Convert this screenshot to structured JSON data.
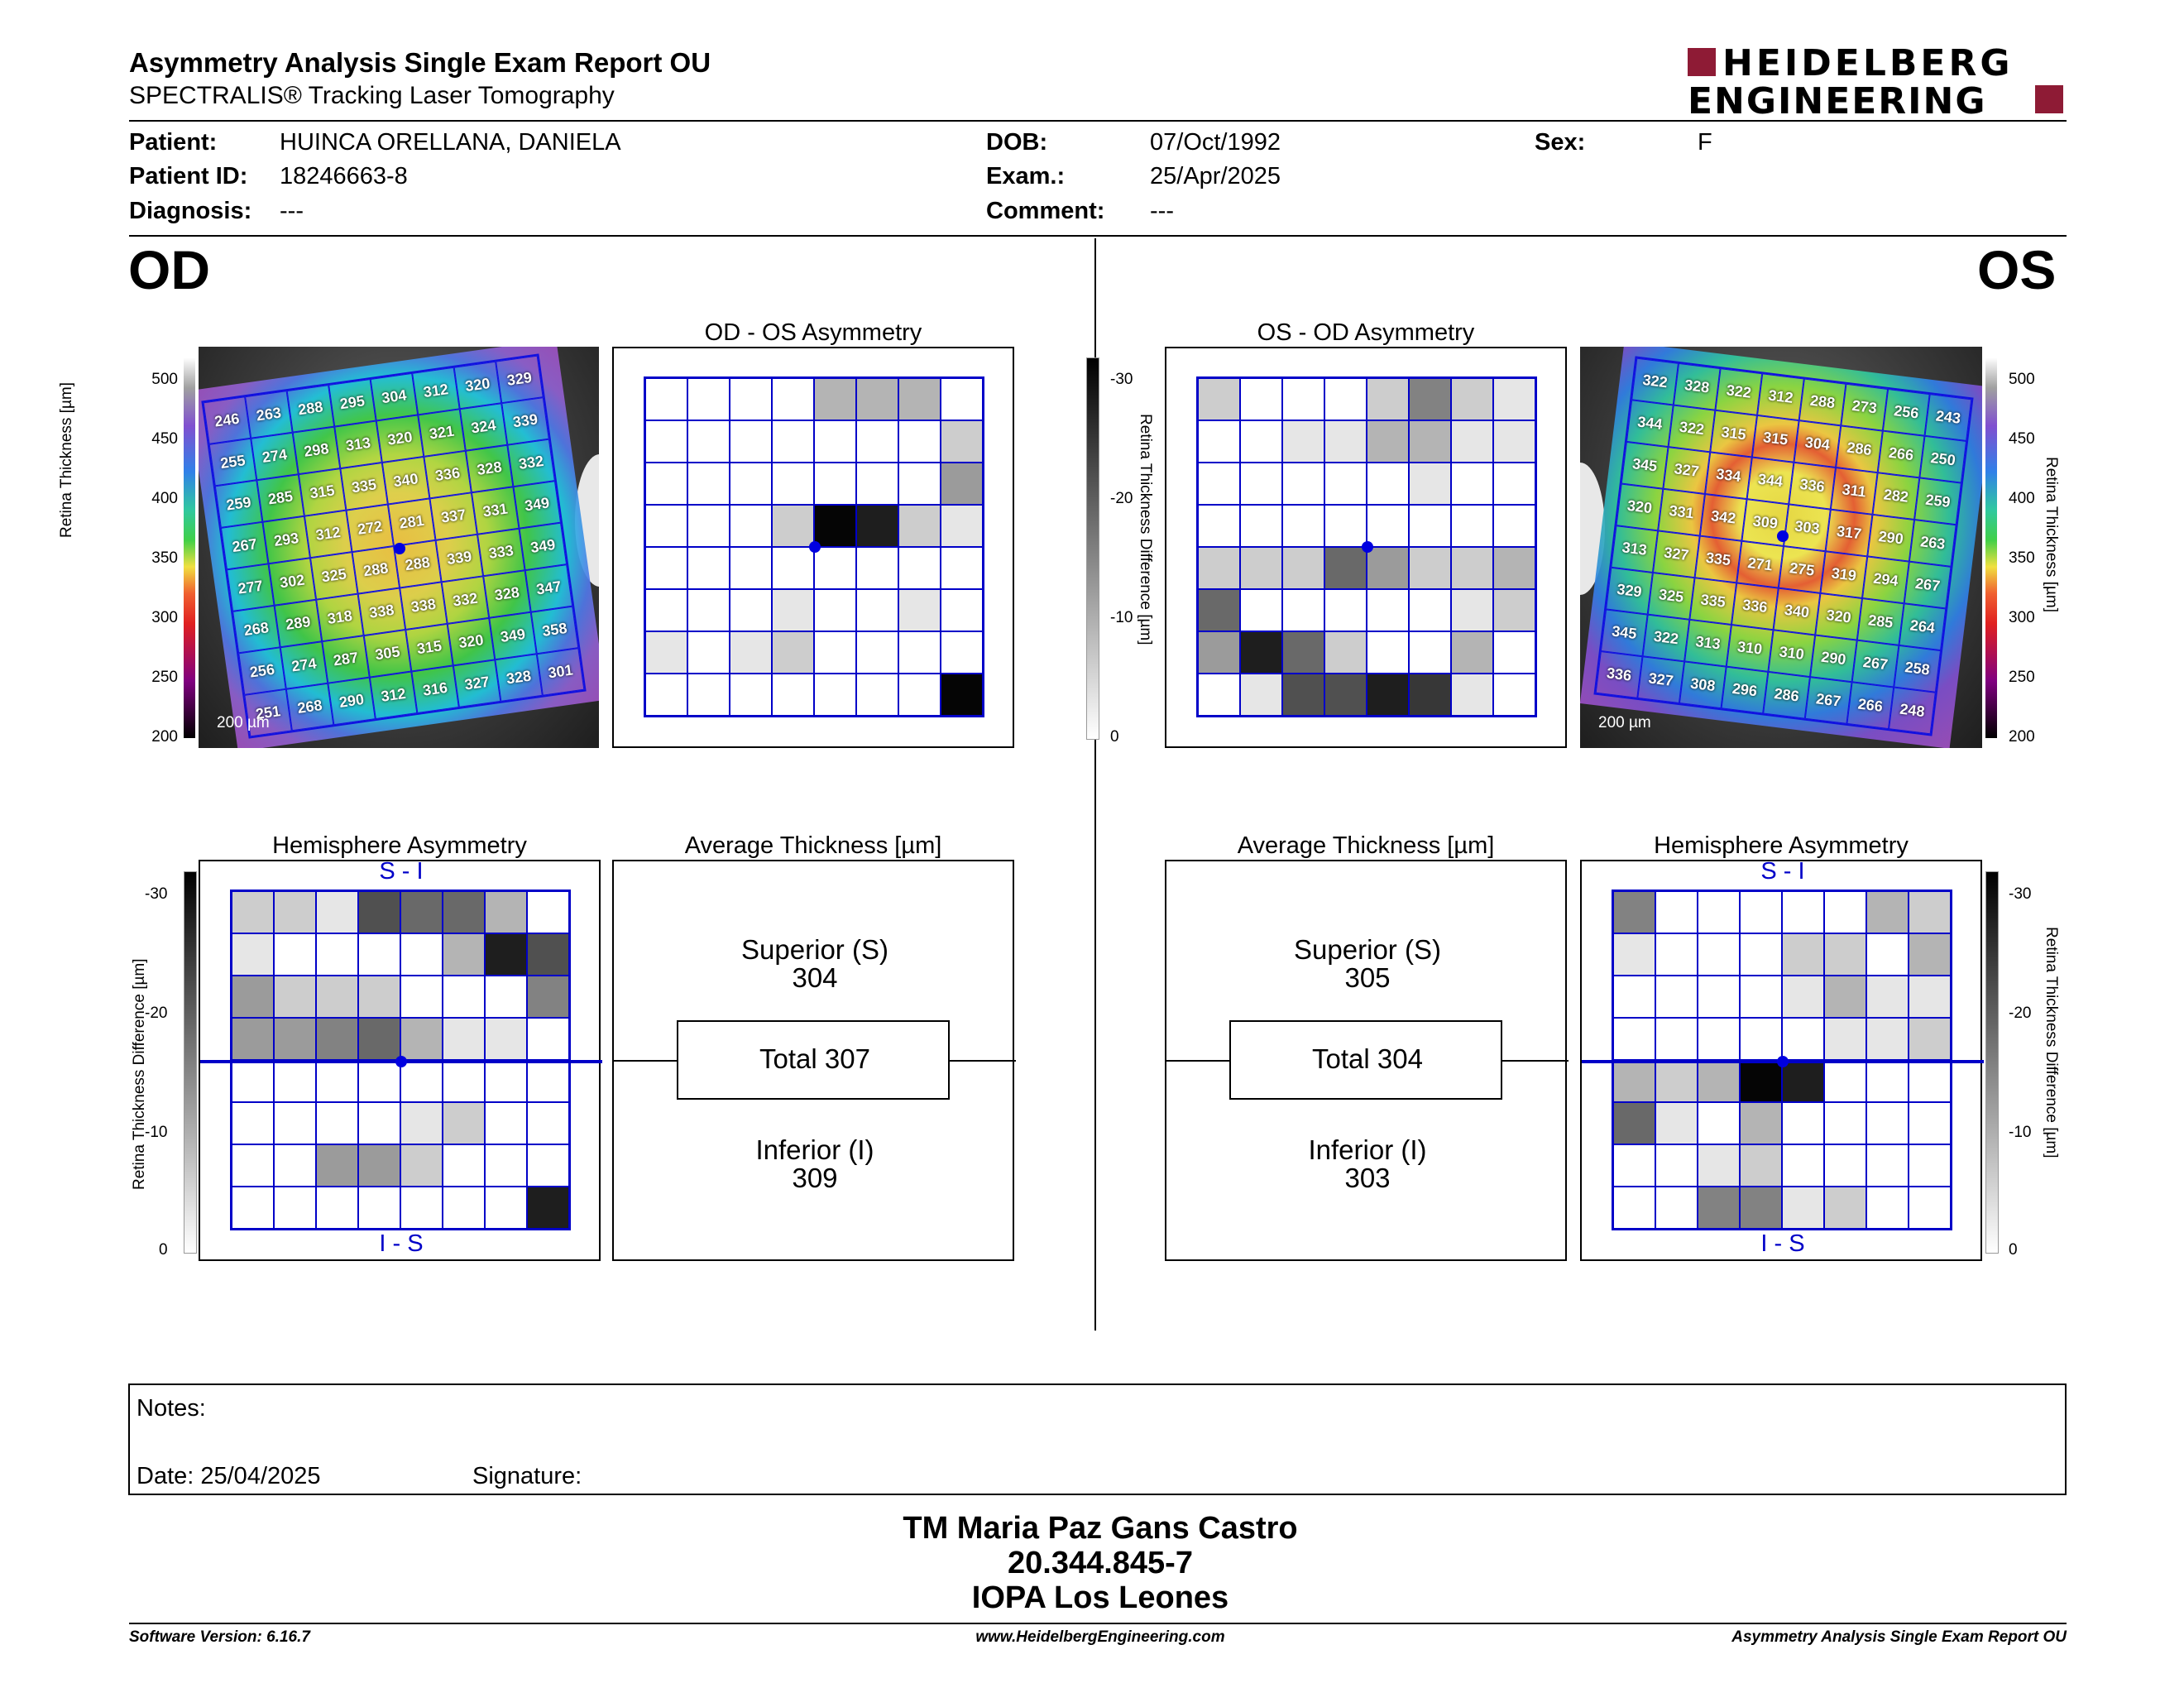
{
  "header": {
    "title": "Asymmetry Analysis Single Exam Report OU",
    "subtitle": "SPECTRALIS® Tracking Laser Tomography",
    "logo_line1": "HEIDELBERG",
    "logo_line2": "ENGINEERING"
  },
  "patient": {
    "patient_label": "Patient:",
    "patient_value": "HUINCA ORELLANA, DANIELA",
    "id_label": "Patient ID:",
    "id_value": "18246663-8",
    "diag_label": "Diagnosis:",
    "diag_value": "---",
    "dob_label": "DOB:",
    "dob_value": "07/Oct/1992",
    "exam_label": "Exam.:",
    "exam_value": "25/Apr/2025",
    "comment_label": "Comment:",
    "comment_value": "---",
    "sex_label": "Sex:",
    "sex_value": "F"
  },
  "od": {
    "eye": "OD",
    "asym_title": "OD - OS Asymmetry",
    "hemi_title": "Hemisphere Asymmetry",
    "avg_title": "Average Thickness [µm]",
    "superior_label": "Superior (S)",
    "superior_value": "304",
    "total": "Total 307",
    "inferior_label": "Inferior (I)",
    "inferior_value": "309",
    "scale_label": "200 µm",
    "thickness": [
      [
        "246",
        "263",
        "288",
        "295",
        "304",
        "312",
        "320",
        "329"
      ],
      [
        "255",
        "274",
        "298",
        "313",
        "320",
        "321",
        "324",
        "339"
      ],
      [
        "259",
        "285",
        "315",
        "335",
        "340",
        "336",
        "328",
        "332"
      ],
      [
        "267",
        "293",
        "312",
        "272",
        "281",
        "337",
        "331",
        "349"
      ],
      [
        "277",
        "302",
        "325",
        "288",
        "288",
        "339",
        "333",
        "349"
      ],
      [
        "268",
        "289",
        "318",
        "338",
        "338",
        "332",
        "328",
        "347"
      ],
      [
        "256",
        "274",
        "287",
        "305",
        "315",
        "320",
        "349",
        "358"
      ],
      [
        "251",
        "268",
        "290",
        "312",
        "316",
        "327",
        "328",
        "301"
      ]
    ],
    "asym_gray": [
      [
        0,
        0,
        0,
        0,
        3,
        3,
        3,
        0
      ],
      [
        0,
        0,
        0,
        0,
        0,
        0,
        0,
        2
      ],
      [
        0,
        0,
        0,
        0,
        0,
        0,
        0,
        4
      ],
      [
        0,
        0,
        0,
        2,
        10,
        9,
        2,
        1
      ],
      [
        0,
        0,
        0,
        0,
        0,
        0,
        0,
        0
      ],
      [
        0,
        0,
        0,
        1,
        0,
        0,
        1,
        0
      ],
      [
        1,
        0,
        1,
        2,
        0,
        0,
        0,
        0
      ],
      [
        0,
        0,
        0,
        0,
        0,
        0,
        0,
        10
      ]
    ],
    "hemi_gray": [
      [
        2,
        2,
        1,
        7,
        6,
        6,
        3,
        0
      ],
      [
        1,
        0,
        0,
        0,
        0,
        3,
        9,
        7
      ],
      [
        4,
        2,
        2,
        2,
        0,
        0,
        0,
        5
      ],
      [
        4,
        4,
        5,
        6,
        3,
        1,
        1,
        0
      ],
      [
        0,
        0,
        0,
        0,
        0,
        0,
        0,
        0
      ],
      [
        0,
        0,
        0,
        0,
        1,
        2,
        0,
        0
      ],
      [
        0,
        0,
        4,
        4,
        2,
        0,
        0,
        0
      ],
      [
        0,
        0,
        0,
        0,
        0,
        0,
        0,
        9
      ]
    ]
  },
  "os": {
    "eye": "OS",
    "asym_title": "OS - OD Asymmetry",
    "hemi_title": "Hemisphere Asymmetry",
    "avg_title": "Average Thickness [µm]",
    "superior_label": "Superior (S)",
    "superior_value": "305",
    "total": "Total 304",
    "inferior_label": "Inferior (I)",
    "inferior_value": "303",
    "scale_label": "200 µm",
    "thickness": [
      [
        "322",
        "328",
        "322",
        "312",
        "288",
        "273",
        "256",
        "243"
      ],
      [
        "344",
        "322",
        "315",
        "315",
        "304",
        "286",
        "266",
        "250"
      ],
      [
        "345",
        "327",
        "334",
        "344",
        "336",
        "311",
        "282",
        "259"
      ],
      [
        "320",
        "331",
        "342",
        "309",
        "303",
        "317",
        "290",
        "263"
      ],
      [
        "313",
        "327",
        "335",
        "271",
        "275",
        "319",
        "294",
        "267"
      ],
      [
        "329",
        "325",
        "335",
        "336",
        "340",
        "320",
        "285",
        "264"
      ],
      [
        "345",
        "322",
        "313",
        "310",
        "310",
        "290",
        "267",
        "258"
      ],
      [
        "336",
        "327",
        "308",
        "296",
        "286",
        "267",
        "266",
        "248"
      ]
    ],
    "asym_gray": [
      [
        2,
        0,
        0,
        0,
        2,
        5,
        2,
        1
      ],
      [
        0,
        0,
        1,
        1,
        3,
        3,
        1,
        1
      ],
      [
        0,
        0,
        0,
        0,
        0,
        1,
        0,
        0
      ],
      [
        0,
        0,
        0,
        0,
        0,
        0,
        0,
        0
      ],
      [
        2,
        2,
        2,
        6,
        4,
        2,
        2,
        3
      ],
      [
        6,
        0,
        0,
        0,
        0,
        0,
        1,
        2
      ],
      [
        4,
        9,
        6,
        2,
        0,
        0,
        3,
        0
      ],
      [
        0,
        1,
        7,
        7,
        9,
        8,
        1,
        0
      ]
    ],
    "hemi_gray": [
      [
        5,
        0,
        0,
        0,
        0,
        0,
        3,
        2
      ],
      [
        1,
        0,
        0,
        0,
        2,
        2,
        0,
        3
      ],
      [
        0,
        0,
        0,
        0,
        1,
        3,
        1,
        1
      ],
      [
        0,
        0,
        0,
        0,
        0,
        1,
        1,
        2
      ],
      [
        3,
        2,
        3,
        10,
        9,
        0,
        0,
        0
      ],
      [
        6,
        1,
        0,
        3,
        0,
        0,
        0,
        0
      ],
      [
        0,
        0,
        1,
        2,
        0,
        0,
        0,
        0
      ],
      [
        0,
        0,
        5,
        5,
        1,
        2,
        0,
        0
      ]
    ]
  },
  "colorbar": {
    "ticks": [
      "-30",
      "-20",
      "-10",
      "0"
    ],
    "label": "Retina Thickness Difference [µm]"
  },
  "thick_axis": {
    "ticks": [
      "500",
      "450",
      "400",
      "350",
      "300",
      "250",
      "200"
    ],
    "label": "Retina Thickness [µm]"
  },
  "hemi_labels": {
    "top": "S - I",
    "bottom": "I - S"
  },
  "notes": {
    "notes_label": "Notes:",
    "date_label": "Date: 25/04/2025",
    "signature_label": "Signature:"
  },
  "stamp": {
    "line1": "TM Maria Paz Gans Castro",
    "line2": "20.344.845-7",
    "line3": "IOPA Los Leones"
  },
  "footer": {
    "version": "Software Version: 6.16.7",
    "website": "www.HeidelbergEngineering.com",
    "report": "Asymmetry Analysis Single Exam Report OU"
  }
}
